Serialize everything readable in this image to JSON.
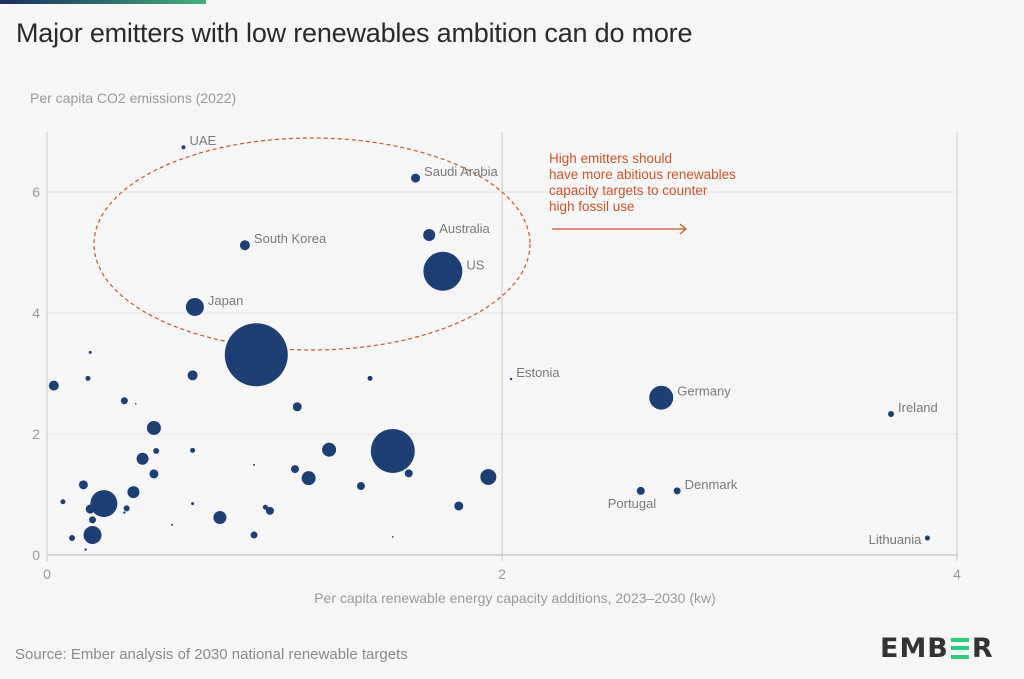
{
  "header": {
    "title": "Major emitters with low renewables ambition can do more"
  },
  "footer": {
    "source": "Source: Ember analysis of 2030 national renewable targets",
    "logo_text_left": "EMB",
    "logo_text_right": "R"
  },
  "colors": {
    "bubble": "#1e3f74",
    "annotation": "#c9552a",
    "gridline": "#e4e4e4",
    "axis": "#c8c8c8",
    "accent_green": "#2dcf7e"
  },
  "chart_data": {
    "type": "scatter",
    "title": "Major emitters with low renewables ambition can do more",
    "xlabel": "Per capita renewable energy capacity additions, 2023–2030 (kw)",
    "ylabel": "Per capita CO2 emissions (2022)",
    "xlim": [
      0,
      4
    ],
    "ylim": [
      0,
      7
    ],
    "xticks": [
      0,
      2,
      4
    ],
    "yticks": [
      0,
      2,
      4,
      6
    ],
    "grid": "horizontal",
    "size_encoding": "bubble area ~ total emissions (relative)",
    "annotation": {
      "lines": [
        "High emitters should",
        "have more abitious renewables",
        "capacity targets to counter",
        "high fossil use"
      ],
      "arrow": "right"
    },
    "highlight_ellipse": "encloses UAE, Saudi Arabia, South Korea, Australia, US, Japan",
    "points": [
      {
        "label": "UAE",
        "x": 0.6,
        "y": 6.74,
        "size": 2
      },
      {
        "label": "Saudi Arabia",
        "x": 1.62,
        "y": 6.23,
        "size": 4.5
      },
      {
        "label": "South Korea",
        "x": 0.87,
        "y": 5.12,
        "size": 5
      },
      {
        "label": "Australia",
        "x": 1.68,
        "y": 5.29,
        "size": 6
      },
      {
        "label": "US",
        "x": 1.74,
        "y": 4.69,
        "size": 19.5
      },
      {
        "label": "Japan",
        "x": 0.65,
        "y": 4.1,
        "size": 9
      },
      {
        "label": "",
        "x": 0.92,
        "y": 3.31,
        "size": 31.5
      },
      {
        "label": "Estonia",
        "x": 2.04,
        "y": 2.91,
        "size": 1.2
      },
      {
        "label": "Germany",
        "x": 2.7,
        "y": 2.6,
        "size": 12
      },
      {
        "label": "Ireland",
        "x": 3.71,
        "y": 2.33,
        "size": 3
      },
      {
        "label": "Portugal",
        "x": 2.61,
        "y": 1.06,
        "size": 4
      },
      {
        "label": "Denmark",
        "x": 2.77,
        "y": 1.06,
        "size": 3.5
      },
      {
        "label": "Lithuania",
        "x": 3.87,
        "y": 0.28,
        "size": 2.5
      },
      {
        "label": "",
        "x": 1.52,
        "y": 1.72,
        "size": 22
      },
      {
        "label": "",
        "x": 0.03,
        "y": 2.8,
        "size": 5
      },
      {
        "label": "",
        "x": 0.19,
        "y": 3.35,
        "size": 1.5
      },
      {
        "label": "",
        "x": 0.18,
        "y": 2.92,
        "size": 2.5
      },
      {
        "label": "",
        "x": 0.34,
        "y": 2.55,
        "size": 3.5
      },
      {
        "label": "",
        "x": 0.39,
        "y": 2.5,
        "size": 0.8
      },
      {
        "label": "",
        "x": 0.47,
        "y": 2.1,
        "size": 7
      },
      {
        "label": "",
        "x": 0.48,
        "y": 1.72,
        "size": 3
      },
      {
        "label": "",
        "x": 0.42,
        "y": 1.59,
        "size": 6
      },
      {
        "label": "",
        "x": 0.47,
        "y": 1.34,
        "size": 4.5
      },
      {
        "label": "",
        "x": 0.16,
        "y": 1.16,
        "size": 4.5
      },
      {
        "label": "",
        "x": 0.38,
        "y": 1.04,
        "size": 6
      },
      {
        "label": "",
        "x": 0.07,
        "y": 0.88,
        "size": 2.5
      },
      {
        "label": "",
        "x": 0.25,
        "y": 0.85,
        "size": 13.5
      },
      {
        "label": "",
        "x": 0.19,
        "y": 0.76,
        "size": 4.5
      },
      {
        "label": "",
        "x": 0.35,
        "y": 0.77,
        "size": 3
      },
      {
        "label": "",
        "x": 0.34,
        "y": 0.7,
        "size": 1.2
      },
      {
        "label": "",
        "x": 0.2,
        "y": 0.58,
        "size": 3.5
      },
      {
        "label": "",
        "x": 0.11,
        "y": 0.28,
        "size": 3
      },
      {
        "label": "",
        "x": 0.2,
        "y": 0.33,
        "size": 9
      },
      {
        "label": "",
        "x": 0.17,
        "y": 0.09,
        "size": 1.2
      },
      {
        "label": "",
        "x": 0.64,
        "y": 2.97,
        "size": 5
      },
      {
        "label": "",
        "x": 0.64,
        "y": 1.73,
        "size": 2.5
      },
      {
        "label": "",
        "x": 0.64,
        "y": 0.85,
        "size": 1.5
      },
      {
        "label": "",
        "x": 0.55,
        "y": 0.5,
        "size": 1
      },
      {
        "label": "",
        "x": 0.76,
        "y": 0.62,
        "size": 6.5
      },
      {
        "label": "",
        "x": 0.91,
        "y": 1.49,
        "size": 1
      },
      {
        "label": "",
        "x": 0.96,
        "y": 0.79,
        "size": 2.5
      },
      {
        "label": "",
        "x": 0.98,
        "y": 0.73,
        "size": 4
      },
      {
        "label": "",
        "x": 0.91,
        "y": 0.33,
        "size": 3.5
      },
      {
        "label": "",
        "x": 1.1,
        "y": 2.45,
        "size": 4.5
      },
      {
        "label": "",
        "x": 1.09,
        "y": 1.42,
        "size": 4
      },
      {
        "label": "",
        "x": 1.15,
        "y": 1.27,
        "size": 7
      },
      {
        "label": "",
        "x": 1.24,
        "y": 1.74,
        "size": 7
      },
      {
        "label": "",
        "x": 1.42,
        "y": 2.92,
        "size": 2.5
      },
      {
        "label": "",
        "x": 1.38,
        "y": 1.14,
        "size": 4
      },
      {
        "label": "",
        "x": 1.59,
        "y": 1.35,
        "size": 4
      },
      {
        "label": "",
        "x": 1.52,
        "y": 0.3,
        "size": 0.8
      },
      {
        "label": "",
        "x": 1.81,
        "y": 0.81,
        "size": 4.5
      },
      {
        "label": "",
        "x": 1.94,
        "y": 1.29,
        "size": 8
      }
    ]
  }
}
